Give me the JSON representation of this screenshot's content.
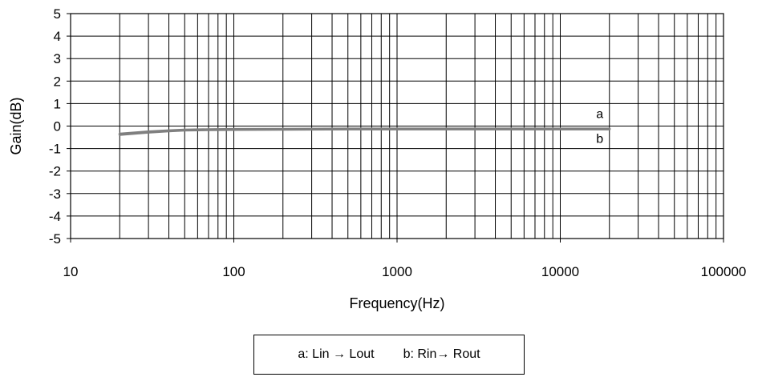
{
  "chart_data": {
    "type": "line",
    "title": "",
    "xlabel": "Frequency(Hz)",
    "ylabel": "Gain(dB)",
    "x_scale": "log",
    "xlim": [
      10,
      100000
    ],
    "ylim": [
      -5,
      5
    ],
    "x_ticks": [
      "10",
      "100",
      "1000",
      "10000",
      "100000"
    ],
    "y_ticks": [
      "5",
      "4",
      "3",
      "2",
      "1",
      "0",
      "-1",
      "-2",
      "-3",
      "-4",
      "-5"
    ],
    "grid": true,
    "legend": {
      "placement": "bottom",
      "entries": [
        "a: Lin → Lout",
        "b: Rin→ Rout"
      ]
    },
    "series": [
      {
        "name": "a",
        "color": "#7f7f7f",
        "x": [
          20,
          30,
          40,
          50,
          70,
          100,
          200,
          500,
          1000,
          2000,
          5000,
          10000,
          20000
        ],
        "y": [
          -0.35,
          -0.25,
          -0.2,
          -0.17,
          -0.15,
          -0.14,
          -0.13,
          -0.12,
          -0.12,
          -0.12,
          -0.12,
          -0.12,
          -0.12
        ]
      },
      {
        "name": "b",
        "color": "#7f7f7f",
        "x": [
          20,
          30,
          40,
          50,
          70,
          100,
          200,
          500,
          1000,
          2000,
          5000,
          10000,
          20000
        ],
        "y": [
          -0.38,
          -0.28,
          -0.22,
          -0.19,
          -0.17,
          -0.16,
          -0.15,
          -0.14,
          -0.14,
          -0.14,
          -0.14,
          -0.14,
          -0.14
        ]
      }
    ],
    "annotations": [
      "a",
      "b"
    ]
  }
}
